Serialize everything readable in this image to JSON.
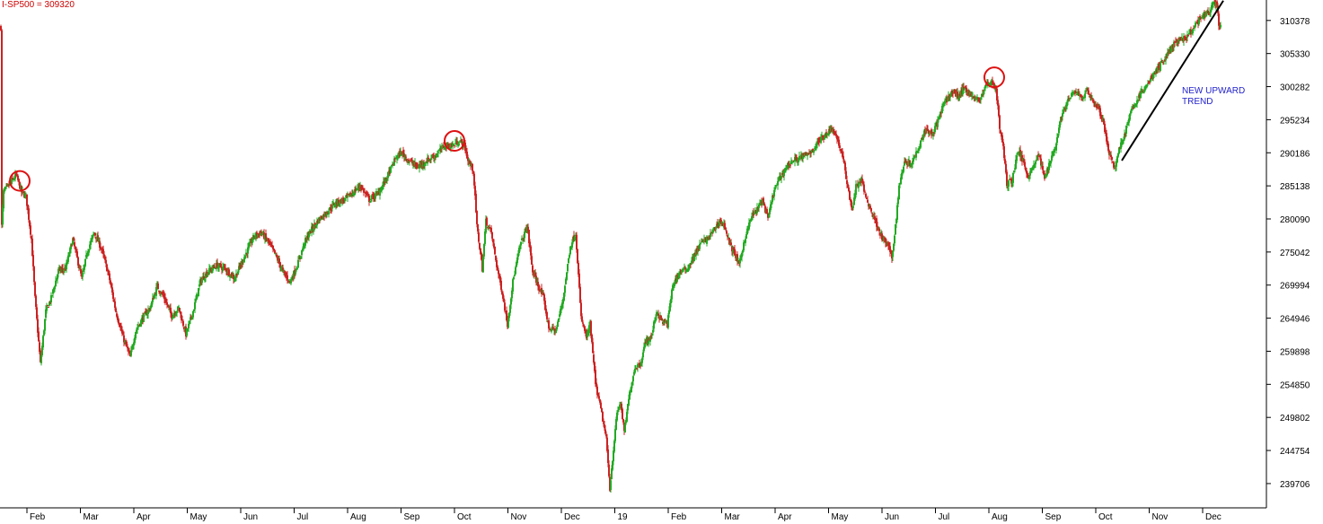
{
  "chart_data": {
    "type": "candlestick",
    "title": "I-SP500 = 309320",
    "ylim": [
      236000,
      313500
    ],
    "grid": false,
    "y_ticks": [
      310378,
      305330,
      300282,
      295234,
      290186,
      285138,
      280090,
      275042,
      269994,
      264946,
      259898,
      254850,
      249802,
      244754,
      239706
    ],
    "x_ticks": [
      "Feb",
      "Mar",
      "Apr",
      "May",
      "Jun",
      "Jul",
      "Aug",
      "Sep",
      "Oct",
      "Nov",
      "Dec",
      "19",
      "Feb",
      "Mar",
      "Apr",
      "May",
      "Jun",
      "Jul",
      "Aug",
      "Sep",
      "Oct",
      "Nov",
      "Dec"
    ],
    "colors": {
      "up": "#22aa22",
      "down": "#cc2222",
      "annotation": "#2222cc",
      "trendline": "#000000"
    },
    "anchors": [
      [
        1,
        279000
      ],
      [
        3,
        284200
      ],
      [
        10,
        285400
      ],
      [
        17,
        286800
      ],
      [
        23,
        284200
      ],
      [
        28,
        283500
      ],
      [
        34,
        277000
      ],
      [
        38,
        268000
      ],
      [
        44,
        258000
      ],
      [
        50,
        266000
      ],
      [
        56,
        268000
      ],
      [
        64,
        272200
      ],
      [
        72,
        272500
      ],
      [
        80,
        277000
      ],
      [
        90,
        271000
      ],
      [
        97,
        275500
      ],
      [
        104,
        278000
      ],
      [
        112,
        275500
      ],
      [
        120,
        271500
      ],
      [
        128,
        266000
      ],
      [
        136,
        262000
      ],
      [
        144,
        259000
      ],
      [
        150,
        263000
      ],
      [
        158,
        265000
      ],
      [
        166,
        266500
      ],
      [
        174,
        269800
      ],
      [
        182,
        268000
      ],
      [
        190,
        265300
      ],
      [
        198,
        266500
      ],
      [
        206,
        262500
      ],
      [
        214,
        266000
      ],
      [
        222,
        270500
      ],
      [
        230,
        272000
      ],
      [
        240,
        273000
      ],
      [
        250,
        272500
      ],
      [
        260,
        271000
      ],
      [
        270,
        274000
      ],
      [
        282,
        277500
      ],
      [
        290,
        278000
      ],
      [
        298,
        276500
      ],
      [
        306,
        274500
      ],
      [
        314,
        272000
      ],
      [
        322,
        270500
      ],
      [
        330,
        273000
      ],
      [
        338,
        276500
      ],
      [
        346,
        278500
      ],
      [
        354,
        280000
      ],
      [
        362,
        281000
      ],
      [
        372,
        282500
      ],
      [
        382,
        283000
      ],
      [
        390,
        283800
      ],
      [
        400,
        285200
      ],
      [
        410,
        283000
      ],
      [
        420,
        284000
      ],
      [
        430,
        286500
      ],
      [
        440,
        289500
      ],
      [
        446,
        290200
      ],
      [
        454,
        289000
      ],
      [
        464,
        288000
      ],
      [
        474,
        289000
      ],
      [
        484,
        289800
      ],
      [
        494,
        291300
      ],
      [
        502,
        291200
      ],
      [
        510,
        292000
      ],
      [
        516,
        291400
      ],
      [
        520,
        289000
      ],
      [
        526,
        287500
      ],
      [
        530,
        279000
      ],
      [
        536,
        272500
      ],
      [
        540,
        279800
      ],
      [
        546,
        278000
      ],
      [
        552,
        273000
      ],
      [
        558,
        269000
      ],
      [
        564,
        264000
      ],
      [
        570,
        270500
      ],
      [
        578,
        276000
      ],
      [
        586,
        279000
      ],
      [
        592,
        272000
      ],
      [
        598,
        270000
      ],
      [
        604,
        268000
      ],
      [
        610,
        263500
      ],
      [
        618,
        263000
      ],
      [
        626,
        268000
      ],
      [
        634,
        276000
      ],
      [
        640,
        278000
      ],
      [
        646,
        265000
      ],
      [
        652,
        262000
      ],
      [
        656,
        264000
      ],
      [
        662,
        255000
      ],
      [
        668,
        251000
      ],
      [
        674,
        246500
      ],
      [
        678,
        239000
      ],
      [
        682,
        245000
      ],
      [
        686,
        250500
      ],
      [
        690,
        252000
      ],
      [
        694,
        247500
      ],
      [
        700,
        253500
      ],
      [
        706,
        257500
      ],
      [
        712,
        258000
      ],
      [
        718,
        261500
      ],
      [
        724,
        262000
      ],
      [
        730,
        266000
      ],
      [
        736,
        264500
      ],
      [
        742,
        264000
      ],
      [
        748,
        270000
      ],
      [
        756,
        272000
      ],
      [
        764,
        272500
      ],
      [
        772,
        274500
      ],
      [
        780,
        276500
      ],
      [
        786,
        277000
      ],
      [
        792,
        278000
      ],
      [
        800,
        279800
      ],
      [
        806,
        279000
      ],
      [
        812,
        276000
      ],
      [
        818,
        274500
      ],
      [
        822,
        273000
      ],
      [
        828,
        277000
      ],
      [
        836,
        280500
      ],
      [
        842,
        281500
      ],
      [
        848,
        283000
      ],
      [
        854,
        280000
      ],
      [
        860,
        284000
      ],
      [
        866,
        286000
      ],
      [
        874,
        288000
      ],
      [
        882,
        289000
      ],
      [
        890,
        289500
      ],
      [
        898,
        289800
      ],
      [
        906,
        291000
      ],
      [
        914,
        292500
      ],
      [
        920,
        293300
      ],
      [
        926,
        294000
      ],
      [
        932,
        292000
      ],
      [
        938,
        289000
      ],
      [
        944,
        284000
      ],
      [
        948,
        281500
      ],
      [
        952,
        285000
      ],
      [
        958,
        286000
      ],
      [
        964,
        283000
      ],
      [
        970,
        281000
      ],
      [
        976,
        279000
      ],
      [
        982,
        277000
      ],
      [
        988,
        276000
      ],
      [
        992,
        274000
      ],
      [
        996,
        279000
      ],
      [
        1000,
        285000
      ],
      [
        1006,
        289000
      ],
      [
        1012,
        288500
      ],
      [
        1018,
        289800
      ],
      [
        1024,
        292000
      ],
      [
        1030,
        294000
      ],
      [
        1036,
        293000
      ],
      [
        1042,
        294500
      ],
      [
        1048,
        297000
      ],
      [
        1054,
        298500
      ],
      [
        1060,
        299500
      ],
      [
        1066,
        298800
      ],
      [
        1072,
        300000
      ],
      [
        1078,
        299500
      ],
      [
        1084,
        298200
      ],
      [
        1090,
        298500
      ],
      [
        1096,
        300200
      ],
      [
        1100,
        301000
      ],
      [
        1104,
        300800
      ],
      [
        1108,
        300000
      ],
      [
        1112,
        294000
      ],
      [
        1116,
        291000
      ],
      [
        1120,
        285500
      ],
      [
        1126,
        286000
      ],
      [
        1132,
        290500
      ],
      [
        1138,
        289000
      ],
      [
        1144,
        286500
      ],
      [
        1150,
        288500
      ],
      [
        1156,
        289800
      ],
      [
        1162,
        286200
      ],
      [
        1168,
        289000
      ],
      [
        1174,
        291000
      ],
      [
        1180,
        295500
      ],
      [
        1186,
        297500
      ],
      [
        1192,
        299000
      ],
      [
        1198,
        299500
      ],
      [
        1204,
        298500
      ],
      [
        1210,
        299800
      ],
      [
        1216,
        298000
      ],
      [
        1222,
        297000
      ],
      [
        1228,
        294500
      ],
      [
        1234,
        290000
      ],
      [
        1240,
        287500
      ],
      [
        1244,
        290500
      ],
      [
        1250,
        292500
      ],
      [
        1256,
        295500
      ],
      [
        1262,
        297500
      ],
      [
        1268,
        299000
      ],
      [
        1274,
        300000
      ],
      [
        1280,
        301500
      ],
      [
        1286,
        302500
      ],
      [
        1292,
        303800
      ],
      [
        1298,
        305000
      ],
      [
        1304,
        306500
      ],
      [
        1310,
        307000
      ],
      [
        1316,
        307500
      ],
      [
        1322,
        308000
      ],
      [
        1328,
        309200
      ],
      [
        1334,
        310500
      ],
      [
        1340,
        311000
      ],
      [
        1346,
        312000
      ],
      [
        1350,
        313000
      ],
      [
        1354,
        312700
      ],
      [
        1356,
        309500
      ],
      [
        1358,
        309320
      ]
    ],
    "circles": [
      [
        21,
        285900
      ],
      [
        505,
        292000
      ],
      [
        1106,
        301700
      ]
    ],
    "trendline": [
      [
        1248,
        289000
      ],
      [
        1361,
        313400
      ]
    ],
    "annotation": {
      "lines": [
        "NEW UPWARD",
        "TREND"
      ],
      "x": 1316,
      "y": 301000
    }
  }
}
